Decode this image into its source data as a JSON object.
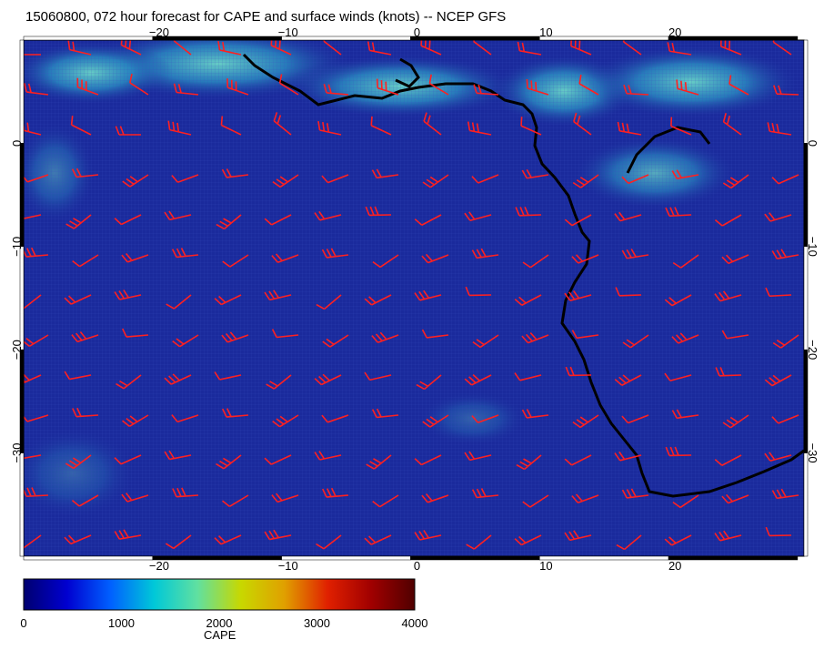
{
  "title": "15060800, 072 hour forecast for CAPE and surface winds (knots) -- NCEP GFS",
  "map": {
    "lon_range": [
      -30.5,
      30
    ],
    "lat_range": [
      -40,
      10
    ],
    "lon_ticks": [
      -20,
      -10,
      0,
      10,
      20
    ],
    "lat_ticks": [
      0,
      -10,
      -20,
      -30
    ],
    "lon_tick_labels": [
      "−20",
      "−10",
      "0",
      "10",
      "20"
    ],
    "lat_tick_labels": [
      "0",
      "−10",
      "−20",
      "−30"
    ],
    "ocean_color": "#1a2a9c",
    "land_color": "#16279a",
    "coast_color": "#000000",
    "wind_barb_color": "#ff2020",
    "high_cape_color": "#3bb0c8"
  },
  "colorbar": {
    "label": "CAPE",
    "min": 0,
    "max": 4000,
    "ticks": [
      0,
      1000,
      2000,
      3000,
      4000
    ],
    "tick_labels": [
      "0",
      "1000",
      "2000",
      "3000",
      "4000"
    ],
    "colors": [
      "#000070",
      "#0000d0",
      "#0060ff",
      "#00c8d8",
      "#60e0a0",
      "#c8d800",
      "#e0a000",
      "#e02000",
      "#a00000",
      "#500000"
    ]
  }
}
